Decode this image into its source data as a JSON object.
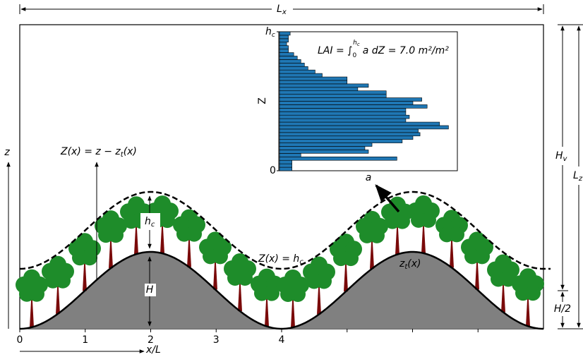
{
  "labels": {
    "lx": {
      "base": "L",
      "sub": "x"
    },
    "lz": {
      "base": "L",
      "sub": "z"
    },
    "hv": {
      "base": "H",
      "sub": "v"
    },
    "half_h": "H/2",
    "z": "z",
    "x_axis": "x/L",
    "z_def": {
      "lhs": "Z(x) = z − z",
      "sub": "t",
      "rhs": "(x)"
    },
    "hc": {
      "base": "h",
      "sub": "c"
    },
    "h": "H",
    "canopy": {
      "lhs": "Z(x) = h",
      "sub": "c"
    },
    "terrain": {
      "base": "z",
      "sub": "t",
      "rhs": "(x)"
    },
    "a": "a"
  },
  "xticks": [
    0,
    1,
    2,
    3,
    4
  ],
  "chart_data": {
    "type": "barh",
    "ylabel": "Z",
    "annotation": {
      "lhs": "LAI = ∫",
      "lower": "0",
      "upper": "h",
      "upper_sub": "c",
      "rhs": "a dZ = 7.0 m²/m²"
    },
    "ylim": [
      0,
      1
    ],
    "yticks": [
      0,
      {
        "value": 1,
        "label": "h"
      }
    ],
    "ytick_sub": "c",
    "xlim": [
      0,
      1
    ],
    "color": "#1f77b4",
    "values": [
      0.07,
      0.07,
      0.07,
      0.66,
      0.12,
      0.5,
      0.48,
      0.52,
      0.69,
      0.75,
      0.79,
      0.78,
      0.95,
      0.9,
      0.71,
      0.73,
      0.71,
      0.71,
      0.83,
      0.75,
      0.8,
      0.6,
      0.6,
      0.44,
      0.5,
      0.38,
      0.38,
      0.24,
      0.2,
      0.16,
      0.14,
      0.12,
      0.1,
      0.08,
      0.05,
      0.05,
      0.04,
      0.05,
      0.05,
      0.06
    ]
  }
}
